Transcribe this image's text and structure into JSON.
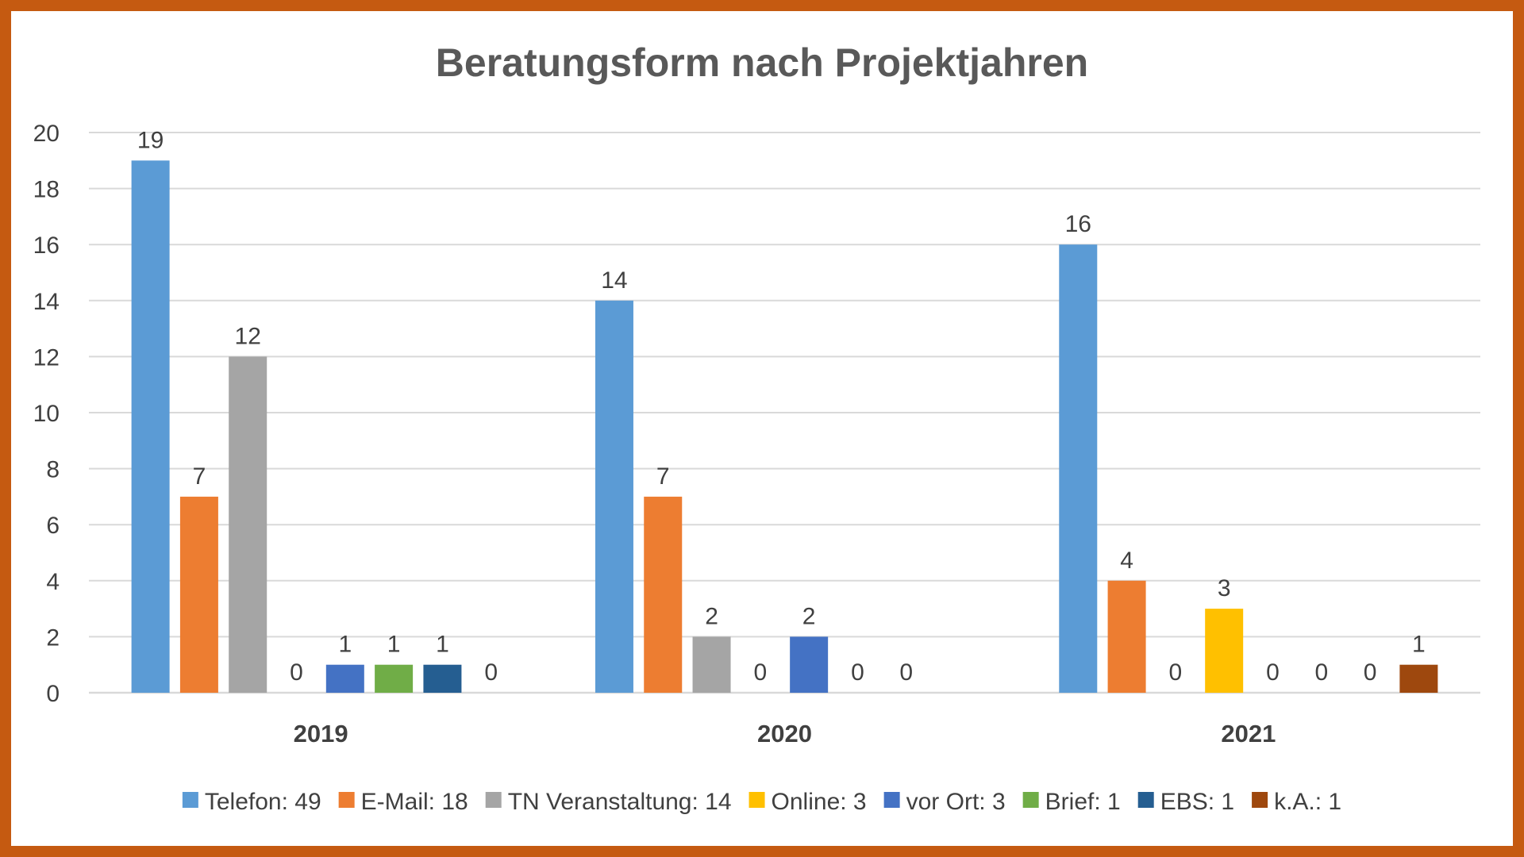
{
  "chart_data": {
    "type": "bar",
    "title": "Beratungsform nach Projektjahren",
    "xlabel": "",
    "ylabel": "",
    "ylim": [
      0,
      20
    ],
    "yticks": [
      0,
      2,
      4,
      6,
      8,
      10,
      12,
      14,
      16,
      18,
      20
    ],
    "grid": true,
    "legend_position": "bottom",
    "categories": [
      "2019",
      "2020",
      "2021"
    ],
    "series": [
      {
        "name": "Telefon: 49",
        "color": "#5b9bd5",
        "values": [
          19,
          14,
          16
        ],
        "labels": [
          "19",
          "14",
          "16"
        ]
      },
      {
        "name": "E-Mail: 18",
        "color": "#ed7d31",
        "values": [
          7,
          7,
          4
        ],
        "labels": [
          "7",
          "7",
          "4"
        ]
      },
      {
        "name": "TN Veranstaltung: 14",
        "color": "#a5a5a5",
        "values": [
          12,
          2,
          0
        ],
        "labels": [
          "12",
          "2",
          "0"
        ]
      },
      {
        "name": "Online: 3",
        "color": "#ffc000",
        "values": [
          0,
          0,
          3
        ],
        "labels": [
          "0",
          "0",
          "3"
        ]
      },
      {
        "name": "vor Ort: 3",
        "color": "#4472c4",
        "values": [
          1,
          2,
          0
        ],
        "labels": [
          "1",
          "2",
          "0"
        ]
      },
      {
        "name": "Brief: 1",
        "color": "#70ad47",
        "values": [
          1,
          0,
          0
        ],
        "labels": [
          "1",
          "0",
          "0"
        ]
      },
      {
        "name": "EBS: 1",
        "color": "#255e91",
        "values": [
          1,
          0,
          0
        ],
        "labels": [
          "1",
          "0",
          "0"
        ]
      },
      {
        "name": "k.A.: 1",
        "color": "#9e480e",
        "values": [
          0,
          0,
          1
        ],
        "labels": [
          "0",
          "",
          "1"
        ]
      }
    ]
  }
}
